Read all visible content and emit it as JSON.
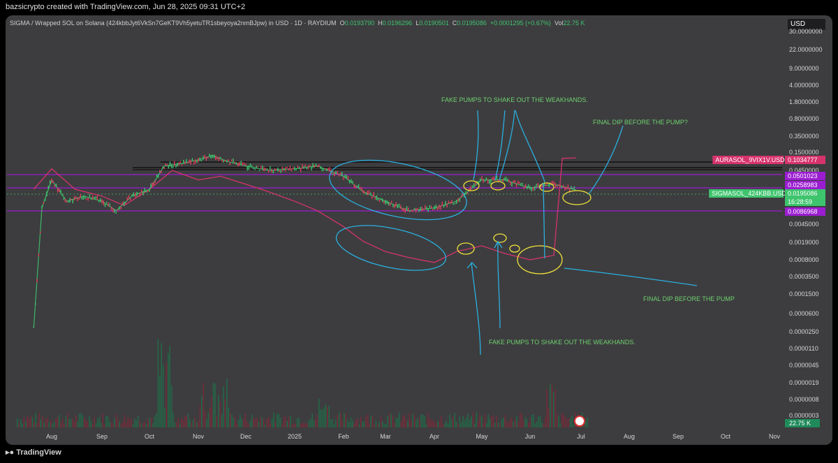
{
  "watermark": "bazsicrypto created with TradingView.com, Jun 28, 2025 09:31 UTC+2",
  "header": {
    "symbol": "SIGMA / Wrapped SOL on Solana (424kbbJyt6VkSn7GeKT9Vh5yetuTR1sbeyoya2nmBJpw) in USD · 1D · RAYDIUM",
    "open_label": "O",
    "open": "0.0193790",
    "high_label": "H",
    "high": "0.0196296",
    "low_label": "L",
    "low": "0.0190501",
    "close_label": "C",
    "close": "0.0195086",
    "change": "+0.0001295 (+0.67%)",
    "vol_label": "Vol",
    "vol": "22.75 K"
  },
  "currency": "USD",
  "footer_brand": "TradingView",
  "colors": {
    "background": "#3d3d3f",
    "candle_up": "#3ec46d",
    "candle_down": "#e23a5c",
    "aura_line": "#d6336c",
    "level_purple": "#9b1dd1",
    "annotation_blue": "#2ab0e0",
    "annotation_yellow": "#f0e03a",
    "annotation_text": "#6fd16f"
  },
  "chart_data": {
    "type": "line",
    "title": "",
    "y_scale": "log",
    "x_ticks": [
      "Aug",
      "Sep",
      "Oct",
      "Nov",
      "Dec",
      "2025",
      "Feb",
      "Mar",
      "Apr",
      "May",
      "Jun",
      "Jul",
      "Aug",
      "Sep",
      "Oct",
      "Nov"
    ],
    "y_ticks": [
      "30.0000000",
      "22.0000000",
      "9.0000000",
      "4.0000000",
      "1.8000000",
      "0.8000000",
      "0.3500000",
      "0.1500000",
      "0.0450000",
      "0.0045000",
      "0.0019000",
      "0.0008000",
      "0.0003500",
      "0.0001500",
      "0.0000600",
      "0.0000250",
      "0.0000110",
      "0.0000045",
      "0.0000019",
      "0.0000008",
      "0.0000003"
    ],
    "price_labels": [
      {
        "name": "AURASOL_9VIX1V.USD",
        "value": "0.1034777",
        "color": "#d6336c"
      },
      {
        "value": "0.0501023",
        "color": "#9b1dd1"
      },
      {
        "value": "0.0258983",
        "color": "#9b1dd1"
      },
      {
        "name": "SIGMASOL_424KBB.USD",
        "value": "0.0195086",
        "color": "#3ec46d"
      },
      {
        "value": "16:28:59",
        "color": "#3ec46d"
      },
      {
        "value": "0.0086968",
        "color": "#9b1dd1"
      }
    ],
    "volume_label": "22.75 K",
    "series": [
      {
        "name": "SIGMASOL_424KBB.USD",
        "x": [
          "Jul 20",
          "Jul 25",
          "Aug 1",
          "Aug 10",
          "Aug 20",
          "Sep 1",
          "Sep 10",
          "Sep 20",
          "Oct 1",
          "Oct 10",
          "Oct 20",
          "Nov 1",
          "Nov 10",
          "Nov 20",
          "Dec 1",
          "Dec 15",
          "Jan 1",
          "Jan 15",
          "Feb 1",
          "Feb 15",
          "Mar 1",
          "Mar 15",
          "Apr 1",
          "Apr 15",
          "May 1",
          "May 15",
          "Jun 1",
          "Jun 15",
          "Jun 28"
        ],
        "values": [
          3e-05,
          0.009,
          0.03,
          0.012,
          0.015,
          0.012,
          0.008,
          0.015,
          0.02,
          0.06,
          0.07,
          0.09,
          0.12,
          0.08,
          0.06,
          0.045,
          0.05,
          0.06,
          0.035,
          0.018,
          0.012,
          0.008,
          0.009,
          0.012,
          0.03,
          0.03,
          0.021,
          0.025,
          0.0195
        ]
      },
      {
        "name": "AURASOL_9VIX1V.USD",
        "x": [
          "Jul 20",
          "Aug 1",
          "Aug 15",
          "Sep 1",
          "Sep 15",
          "Oct 1",
          "Oct 15",
          "Nov 1",
          "Nov 15",
          "Dec 1",
          "Dec 15",
          "Jan 1",
          "Jan 15",
          "Feb 1",
          "Feb 15",
          "Mar 1",
          "Mar 15",
          "Apr 1",
          "Apr 15",
          "May 1",
          "May 15",
          "Jun 1",
          "Jun 15",
          "Jun 20",
          "Jun 28"
        ],
        "values": [
          0.02,
          0.05,
          0.02,
          0.015,
          0.01,
          0.02,
          0.045,
          0.03,
          0.035,
          0.025,
          0.018,
          0.012,
          0.008,
          0.004,
          0.002,
          0.0012,
          0.0009,
          0.0007,
          0.0012,
          0.0016,
          0.0011,
          0.0008,
          0.001,
          0.1,
          0.1034777
        ]
      }
    ],
    "annotations": [
      "FAKE PUMPS TO SHAKE OUT THE WEAKHANDS.",
      "FINAL DIP BEFORE THE PUMP?",
      "FINAL DIP BEFORE THE PUMP",
      "FAKE PUMPS TO SHAKE OUT THE WEAKHANDS."
    ],
    "grid": false,
    "legend": "none"
  }
}
